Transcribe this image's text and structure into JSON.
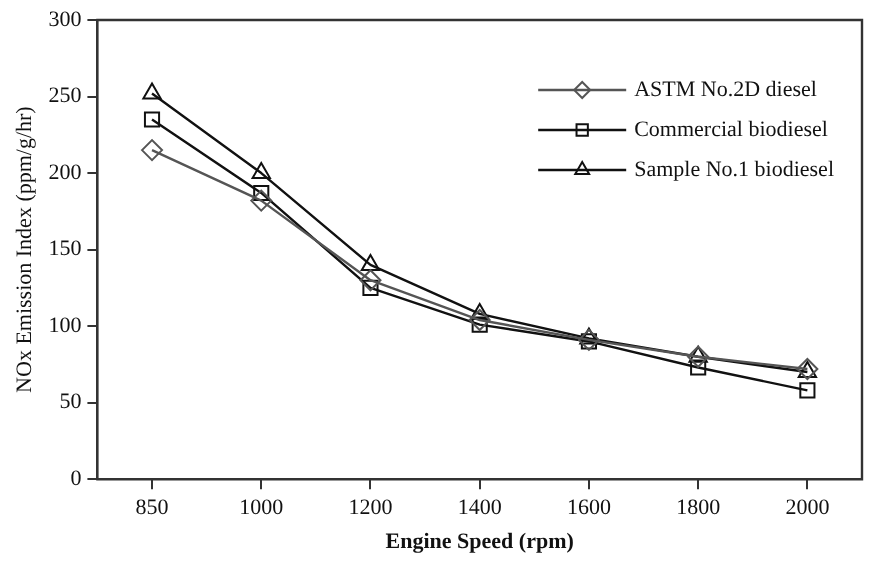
{
  "chart_data": {
    "type": "line",
    "xlabel": "Engine Speed (rpm)",
    "ylabel": "NOx Emission Index (ppm/g/hr)",
    "categories": [
      "850",
      "1000",
      "1200",
      "1400",
      "1600",
      "1800",
      "2000"
    ],
    "series": [
      {
        "name": "ASTM No.2D diesel",
        "color": "#555555",
        "marker": "diamond",
        "values": [
          215,
          182,
          130,
          104,
          91,
          80,
          72
        ]
      },
      {
        "name": "Commercial biodiesel",
        "color": "#111111",
        "marker": "square",
        "values": [
          235,
          187,
          125,
          101,
          90,
          73,
          58
        ]
      },
      {
        "name": "Sample No.1 biodiesel",
        "color": "#111111",
        "marker": "triangle",
        "values": [
          252,
          200,
          140,
          108,
          92,
          80,
          70
        ]
      }
    ],
    "ylim": [
      0,
      300
    ],
    "yticks": [
      0,
      50,
      100,
      150,
      200,
      250,
      300
    ],
    "grid": false,
    "legend": "top right",
    "line_style": "solid"
  }
}
